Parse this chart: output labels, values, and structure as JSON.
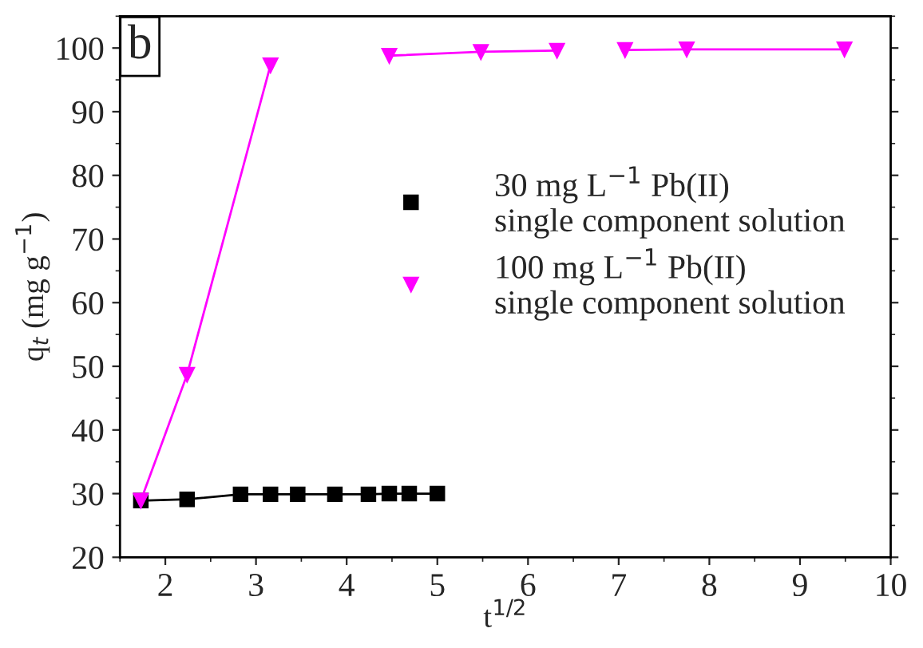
{
  "chart_data": {
    "type": "line",
    "xlabel": "t$^{1/2}$",
    "ylabel": "q$_{t}$ (mg g$^{−1}$)",
    "annotations": [
      "b"
    ],
    "xlim": [
      1.5,
      10
    ],
    "xticks": [
      2,
      3,
      4,
      5,
      6,
      7,
      8,
      9,
      10
    ],
    "ylim": [
      20,
      105
    ],
    "yticks": [
      20,
      30,
      40,
      50,
      60,
      70,
      80,
      90,
      100
    ],
    "grid": false,
    "legend": "center right",
    "series": [
      {
        "name": "30 mg L$^{−1}$ Pb(II)\nsingle component solution",
        "color": "#000000",
        "marker": "square",
        "x": [
          1.73,
          2.24,
          2.83,
          3.16,
          3.46,
          3.87,
          4.24,
          4.47,
          4.69,
          5.0
        ],
        "values": [
          28.9,
          29.1,
          29.9,
          29.9,
          29.9,
          29.9,
          29.9,
          30.0,
          30.0,
          30.0
        ]
      },
      {
        "name": "100 mg L$^{−1}$ Pb(II)\nsingle component solution",
        "color": "#ff00ff",
        "marker": "triangle",
        "x": [
          1.73,
          2.24,
          3.16,
          3.8,
          4.47,
          5.48,
          6.32,
          6.7,
          7.07,
          7.75,
          9.49
        ],
        "values": [
          28.9,
          48.7,
          97.3,
          null,
          98.8,
          99.4,
          99.6,
          null,
          99.7,
          99.8,
          99.8
        ]
      }
    ]
  }
}
